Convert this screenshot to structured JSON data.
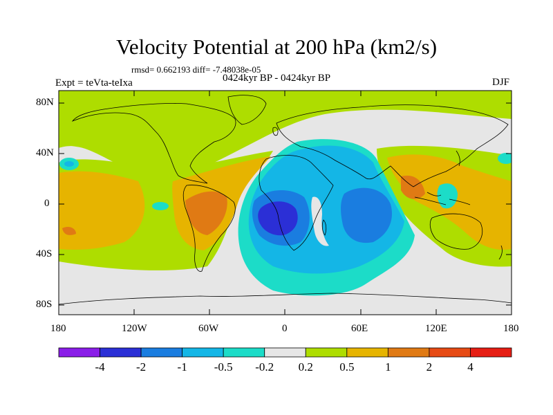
{
  "title": "Velocity Potential at 200 hPa (km2/s)",
  "stats": "rmsd= 0.662193 diff= -7.48038e-05",
  "expt": "Expt = teVta-teIxa",
  "subtitle": "0424kyr BP - 0424kyr BP",
  "season": "DJF",
  "axes": {
    "y_labels": [
      "80N",
      "40N",
      "0",
      "40S",
      "80S"
    ],
    "x_labels": [
      "180",
      "120W",
      "60W",
      "0",
      "60E",
      "120E",
      "180"
    ]
  },
  "colorbar": {
    "labels": [
      "-4",
      "-2",
      "-1",
      "-0.5",
      "-0.2",
      "0.2",
      "0.5",
      "1",
      "2",
      "4"
    ],
    "colors": [
      "#8a1ee8",
      "#2b2fd6",
      "#1a7de0",
      "#14b6e6",
      "#1cdcc8",
      "#e6e6e6",
      "#aedd00",
      "#e6b400",
      "#e07a14",
      "#e64a14",
      "#e61e14"
    ]
  },
  "colors": {
    "ocean_bg": "#e6e6e6",
    "coast": "#000000"
  }
}
